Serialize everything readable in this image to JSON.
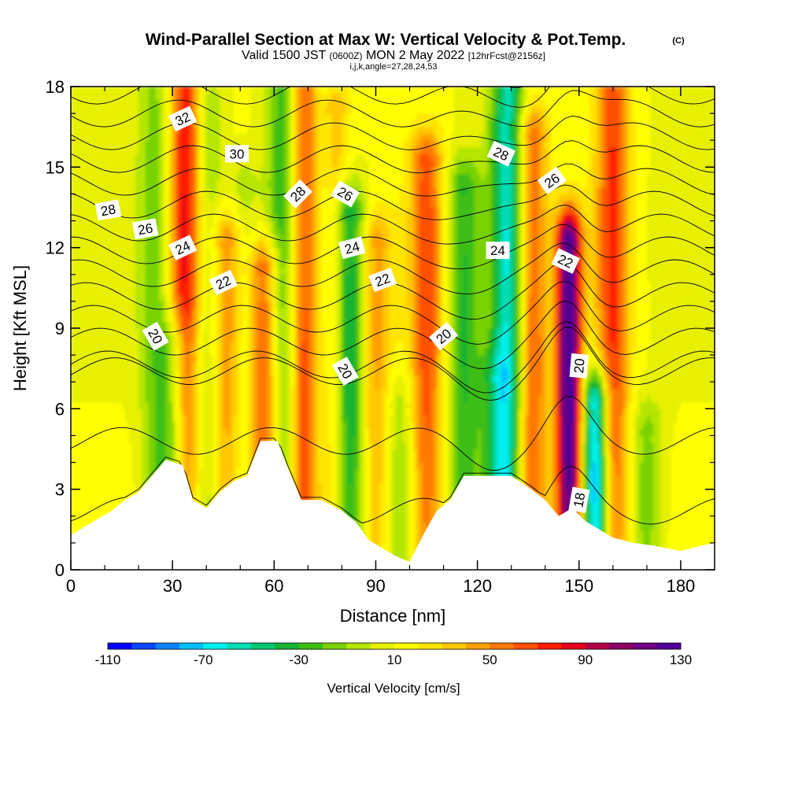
{
  "title": {
    "main": "Wind-Parallel Section at Max W: Vertical Velocity & Pot.Temp.",
    "copyright": "(C)",
    "valid_prefix": "Valid 1500 JST",
    "valid_utc": "(0600Z)",
    "valid_date": "MON 2 May 2022",
    "forecast": "[12hrFcst@2156z]",
    "indices": "i,j,k,angle=27,28,24,53"
  },
  "chart_data": {
    "type": "heatmap",
    "title": "Wind-Parallel Section at Max W: Vertical Velocity & Pot.Temp.",
    "xlabel": "Distance [nm]",
    "ylabel": "Height [Kft MSL]",
    "xlim": [
      0,
      190
    ],
    "ylim": [
      0,
      18
    ],
    "xticks": [
      0,
      30,
      60,
      90,
      120,
      150,
      180
    ],
    "yticks": [
      0,
      3,
      6,
      9,
      12,
      15,
      18
    ],
    "colorbar": {
      "title": "Vertical Velocity [cm/s]",
      "min": -110,
      "max": 130,
      "step": 10,
      "tick_labels": [
        -110,
        -70,
        -30,
        10,
        50,
        90,
        130
      ],
      "colors": [
        "#0000ff",
        "#0a46ff",
        "#0a82ff",
        "#00beff",
        "#00f0f0",
        "#00dcb4",
        "#00c86e",
        "#14b432",
        "#3cbe14",
        "#78d200",
        "#b4e600",
        "#e6f000",
        "#ffff00",
        "#ffe600",
        "#ffc800",
        "#ffa000",
        "#ff7800",
        "#ff5000",
        "#ff1e00",
        "#e6001e",
        "#b40046",
        "#8c0064",
        "#6e0082",
        "#500096"
      ]
    },
    "updrafts": [
      {
        "x": 34,
        "z_top": 18,
        "w": 75
      },
      {
        "x": 46,
        "z_top": 12,
        "w": 45
      },
      {
        "x": 57,
        "z_top": 11,
        "w": 60
      },
      {
        "x": 69,
        "z_top": 18,
        "w": 75
      },
      {
        "x": 77,
        "z_top": 17,
        "w": 50
      },
      {
        "x": 90,
        "z_top": 12,
        "w": 35
      },
      {
        "x": 105,
        "z_top": 15,
        "w": 55
      },
      {
        "x": 136,
        "z_top": 16,
        "w": 55
      },
      {
        "x": 147,
        "z_top": 12,
        "w": 125
      },
      {
        "x": 160,
        "z_top": 18,
        "w": 60
      }
    ],
    "downdrafts": [
      {
        "x": 25,
        "z_top": 18,
        "w": -25
      },
      {
        "x": 31,
        "z_top": 8,
        "w": -45
      },
      {
        "x": 40,
        "z_top": 17,
        "w": -30
      },
      {
        "x": 51,
        "z_top": 14,
        "w": -20
      },
      {
        "x": 63,
        "z_top": 18,
        "w": -45
      },
      {
        "x": 74,
        "z_top": 18,
        "w": -40
      },
      {
        "x": 82,
        "z_top": 13,
        "w": -60
      },
      {
        "x": 97,
        "z_top": 6,
        "w": -20
      },
      {
        "x": 116,
        "z_top": 14,
        "w": -40
      },
      {
        "x": 125,
        "z_top": 7,
        "w": -30
      },
      {
        "x": 129,
        "z_top": 18,
        "w": -70
      },
      {
        "x": 155,
        "z_top": 6,
        "w": -95
      },
      {
        "x": 170,
        "z_top": 5,
        "w": -25
      }
    ],
    "terrain": [
      [
        0,
        1.3
      ],
      [
        4,
        1.6
      ],
      [
        8,
        1.9
      ],
      [
        12,
        2.2
      ],
      [
        16,
        2.6
      ],
      [
        20,
        2.9
      ],
      [
        24,
        3.5
      ],
      [
        28,
        4.1
      ],
      [
        33,
        3.9
      ],
      [
        36,
        2.6
      ],
      [
        40,
        2.3
      ],
      [
        44,
        2.9
      ],
      [
        48,
        3.3
      ],
      [
        52,
        3.5
      ],
      [
        56,
        4.8
      ],
      [
        61,
        4.8
      ],
      [
        64,
        3.8
      ],
      [
        68,
        2.6
      ],
      [
        74,
        2.6
      ],
      [
        80,
        2.2
      ],
      [
        84,
        1.8
      ],
      [
        88,
        1.1
      ],
      [
        92,
        0.8
      ],
      [
        96,
        0.5
      ],
      [
        100,
        0.3
      ],
      [
        104,
        1.3
      ],
      [
        108,
        2.2
      ],
      [
        112,
        2.6
      ],
      [
        116,
        3.5
      ],
      [
        124,
        3.5
      ],
      [
        130,
        3.5
      ],
      [
        136,
        3.0
      ],
      [
        140,
        2.6
      ],
      [
        144,
        2.0
      ],
      [
        148,
        2.3
      ],
      [
        152,
        1.8
      ],
      [
        156,
        1.5
      ],
      [
        160,
        1.2
      ],
      [
        166,
        1.0
      ],
      [
        172,
        0.9
      ],
      [
        180,
        0.7
      ],
      [
        186,
        0.9
      ],
      [
        190,
        1.0
      ]
    ],
    "contours": {
      "variable": "Potential Temperature",
      "levels": [
        18,
        19,
        20,
        21,
        22,
        23,
        24,
        25,
        26,
        27,
        28,
        29,
        30,
        31,
        32,
        33,
        34
      ],
      "labels": [
        {
          "text": "32",
          "x": 33,
          "z": 16.8,
          "angle": -25
        },
        {
          "text": "30",
          "x": 49,
          "z": 15.5,
          "angle": 0
        },
        {
          "text": "28",
          "x": 11,
          "z": 13.4,
          "angle": -10
        },
        {
          "text": "28",
          "x": 67,
          "z": 14.0,
          "angle": -45
        },
        {
          "text": "26",
          "x": 22,
          "z": 12.7,
          "angle": -10
        },
        {
          "text": "26",
          "x": 81,
          "z": 14.0,
          "angle": 30
        },
        {
          "text": "24",
          "x": 33,
          "z": 12.0,
          "angle": -25
        },
        {
          "text": "24",
          "x": 83,
          "z": 12.0,
          "angle": -15
        },
        {
          "text": "22",
          "x": 45,
          "z": 10.7,
          "angle": -25
        },
        {
          "text": "22",
          "x": 92,
          "z": 10.8,
          "angle": -20
        },
        {
          "text": "20",
          "x": 25,
          "z": 8.7,
          "angle": 60
        },
        {
          "text": "20",
          "x": 81,
          "z": 7.4,
          "angle": 60
        },
        {
          "text": "20",
          "x": 110,
          "z": 8.7,
          "angle": -40
        },
        {
          "text": "28",
          "x": 127,
          "z": 15.5,
          "angle": 25
        },
        {
          "text": "26",
          "x": 142,
          "z": 14.5,
          "angle": -35
        },
        {
          "text": "24",
          "x": 126,
          "z": 11.9,
          "angle": 0
        },
        {
          "text": "22",
          "x": 146,
          "z": 11.5,
          "angle": 25
        },
        {
          "text": "20",
          "x": 150,
          "z": 7.6,
          "angle": -85
        },
        {
          "text": "18",
          "x": 150,
          "z": 2.6,
          "angle": -80
        }
      ]
    }
  }
}
